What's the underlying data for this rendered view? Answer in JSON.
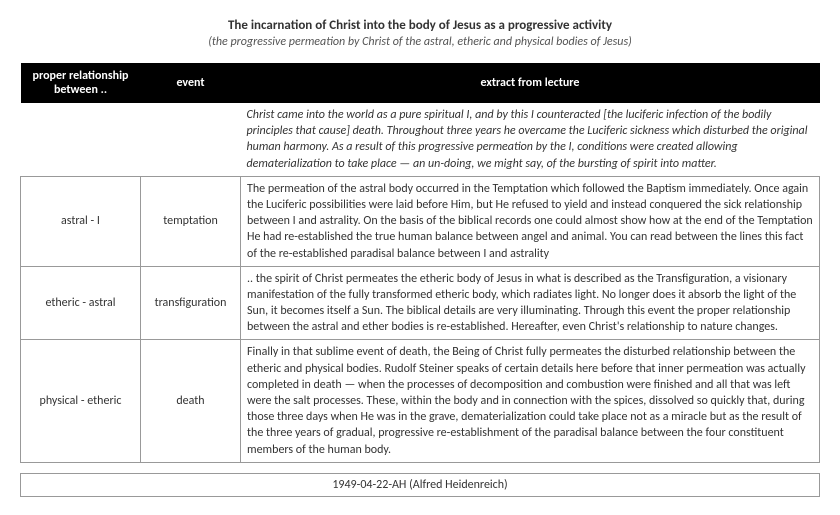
{
  "title": "The incarnation of Christ into the body of Jesus as a progressive activity",
  "subtitle": "(the progressive permeation by Christ of the astral, etheric and physical bodies of Jesus)",
  "columns": {
    "rel": "proper relationship between ..",
    "event": "event",
    "extract": "extract from lecture"
  },
  "intro": "Christ came into the world as a pure spiritual I, and by this I counteracted [the luciferic infection of the bodily principles that cause] death. Throughout three years he overcame the Luciferic sickness which disturbed the original human harmony. As a result of this progressive permeation by the I, conditions were created allowing dematerialization to take place — an un-doing, we might say, of the bursting of spirit into matter.",
  "rows": [
    {
      "rel": "astral - I",
      "event": "temptation",
      "extract": "The permeation of the astral body occurred in the Temptation which followed the Baptism immediately. Once again the Luciferic possibilities were laid before Him, but He refused to yield and instead conquered the sick relationship between I and astrality. On the basis of the biblical records one could almost show how at the end of the Temptation He had re-established the true human balance between angel and animal. You can read between the lines this fact of the re-established paradisal balance between I and astrality"
    },
    {
      "rel": "etheric - astral",
      "event": "transfiguration",
      "extract": ".. the spirit of Christ permeates the etheric body of Jesus in what is described as the Transfiguration, a visionary manifestation of the fully transformed etheric body, which radiates light. No longer does it absorb the light of the Sun, it becomes itself a Sun. The biblical details are very illuminating. Through this event the proper relationship between the astral and ether bodies is re-established. Hereafter, even Christ's relationship to nature changes."
    },
    {
      "rel": "physical - etheric",
      "event": "death",
      "extract": "Finally in that sublime event of death, the Being of Christ fully permeates the disturbed relationship between the etheric and physical bodies.\nRudolf Steiner speaks of certain details here before that inner permeation was actually completed in death — when the processes of decomposition and combustion were finished and all that was left were the salt processes. These, within the body and in connection with the spices, dissolved so quickly that, during those three days when He was in the grave, dematerialization could take place not as a miracle but as the result of the three years of gradual, progressive re-establishment of the paradisal balance between the four constituent members of the human body."
    }
  ],
  "footer": "1949-04-22-AH (Alfred Heidenreich)",
  "style": {
    "font_family": "Calibri, Arial, sans-serif",
    "body_font_size": 12,
    "title_font_size": 13,
    "text_color": "#333333",
    "header_bg": "#000000",
    "header_fg": "#ffffff",
    "border_color": "#999999",
    "background": "#ffffff",
    "col_widths": {
      "rel": 120,
      "event": 100
    }
  }
}
